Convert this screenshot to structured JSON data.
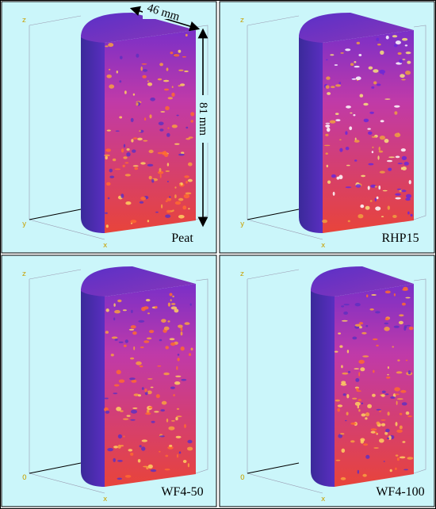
{
  "dimensions": {
    "width": "46 mm",
    "height": "81 mm"
  },
  "panels": [
    {
      "label": "Peat",
      "axes": [
        "z",
        "y",
        "x"
      ]
    },
    {
      "label": "RHP15",
      "axes": [
        "z",
        "y",
        "x"
      ]
    },
    {
      "label": "WF4-50",
      "axes": [
        "z",
        "0",
        "x"
      ]
    },
    {
      "label": "WF4-100",
      "axes": [
        "z",
        "0",
        "x"
      ]
    }
  ]
}
